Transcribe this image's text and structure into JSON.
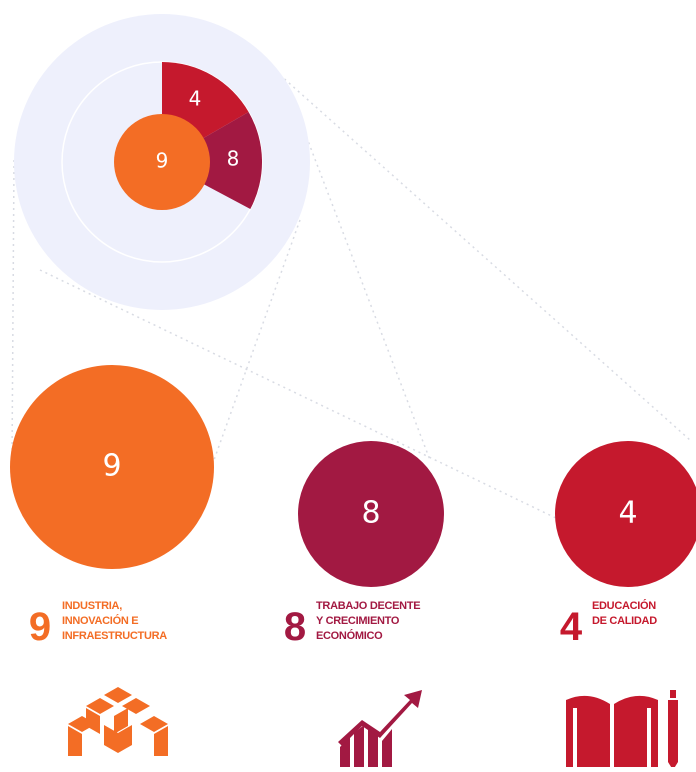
{
  "goals": [
    {
      "number": "9",
      "title_lines": [
        "INDUSTRIA,",
        "INNOVACIÓN E",
        "INFRAESTRUCTURA"
      ],
      "color": "#f36d25"
    },
    {
      "number": "8",
      "title_lines": [
        "TRABAJO DECENTE",
        "Y CRECIMIENTO",
        "ECONÓMICO"
      ],
      "color": "#a21942"
    },
    {
      "number": "4",
      "title_lines": [
        "EDUCACIÓN",
        "DE CALIDAD"
      ],
      "color": "#c5192d"
    }
  ]
}
